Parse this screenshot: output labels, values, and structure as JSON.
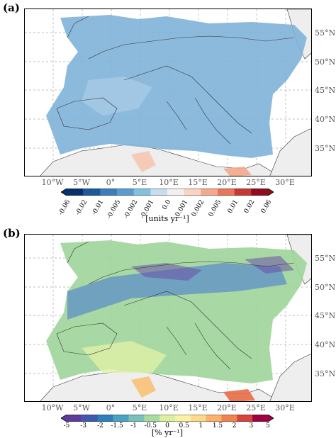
{
  "panels": [
    {
      "letter": "(a)",
      "lat_labels": [
        "55°N",
        "50°N",
        "45°N",
        "40°N",
        "35°N"
      ],
      "lon_labels": [
        "10°W",
        "5°W",
        "0°",
        "5°E",
        "10°E",
        "15°E",
        "20°E",
        "25°E",
        "30°E"
      ],
      "colorbar": {
        "ticks": [
          "-0.06",
          "-0.02",
          "-0.01",
          "-0.005",
          "-0.002",
          "-0.001",
          "0.0",
          "0.001",
          "0.002",
          "0.005",
          "0.01",
          "0.02",
          "0.06"
        ],
        "unit": "[units yr⁻¹]",
        "colors": [
          "#08306b",
          "#1c5a99",
          "#3a7fba",
          "#5b9ccd",
          "#86bfdf",
          "#c7dcee",
          "#f0f0f0",
          "#fbd3c0",
          "#f5a98c",
          "#e8765a",
          "#c43a32",
          "#8e0e1f"
        ]
      },
      "dominant_color": "#6aa9d4"
    },
    {
      "letter": "(b)",
      "lat_labels": [
        "55°N",
        "50°N",
        "45°N",
        "40°N",
        "35°N"
      ],
      "lon_labels": [
        "10°W",
        "5°W",
        "0°",
        "5°E",
        "10°E",
        "15°E",
        "20°E",
        "25°E",
        "30°E"
      ],
      "colorbar": {
        "ticks": [
          "-5",
          "-3",
          "-2",
          "-1.5",
          "-1",
          "-0.5",
          "0",
          "0.5",
          "1",
          "1.5",
          "2",
          "3",
          "5"
        ],
        "unit": "[% yr⁻¹]",
        "colors": [
          "#5e3c99",
          "#3f59b0",
          "#2f7fbd",
          "#4aa3c5",
          "#79c1b9",
          "#a9dba1",
          "#dcefa0",
          "#fbf2a5",
          "#fdd98b",
          "#fcb26a",
          "#f0844e",
          "#d6453b",
          "#9e0142"
        ]
      },
      "dominant_color": "#a8d894"
    }
  ]
}
